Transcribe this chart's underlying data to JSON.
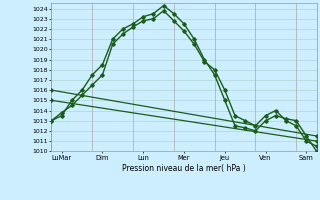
{
  "background_color": "#cceeff",
  "grid_color_h": "#aacccc",
  "grid_color_v": "#aaaaaa",
  "line_color": "#1a5c1a",
  "xlabel": "Pression niveau de la mer( hPa )",
  "ylim": [
    1010,
    1024.5
  ],
  "ytick_min": 1010,
  "ytick_max": 1024,
  "xtick_labels": [
    "LuMar",
    "Dim",
    "Lun",
    "Mer",
    "Jeu",
    "Ven",
    "Sam"
  ],
  "xtick_positions": [
    0.5,
    2.5,
    4.5,
    6.5,
    8.5,
    10.5,
    12.5
  ],
  "vline_positions": [
    0,
    2,
    4,
    6,
    8,
    10,
    12,
    13
  ],
  "series": [
    {
      "x": [
        0,
        0.5,
        1,
        1.5,
        2,
        2.5,
        3,
        3.5,
        4,
        4.5,
        5,
        5.5,
        6,
        6.5,
        7,
        7.5,
        8,
        8.5,
        9,
        9.5,
        10,
        10.5,
        11,
        11.5,
        12,
        12.5,
        13
      ],
      "y": [
        1013.0,
        1013.5,
        1015.0,
        1016.0,
        1017.5,
        1018.5,
        1021.0,
        1022.0,
        1022.5,
        1023.2,
        1023.5,
        1024.3,
        1023.5,
        1022.5,
        1021.0,
        1019.0,
        1017.5,
        1015.0,
        1012.5,
        1012.3,
        1012.0,
        1013.0,
        1013.5,
        1013.2,
        1013.0,
        1011.5,
        1010.0
      ],
      "marker": true,
      "lw": 1.0
    },
    {
      "x": [
        0,
        0.5,
        1,
        1.5,
        2,
        2.5,
        3,
        3.5,
        4,
        4.5,
        5,
        5.5,
        6,
        6.5,
        7,
        7.5,
        8,
        8.5,
        9,
        9.5,
        10,
        10.5,
        11,
        11.5,
        12,
        12.5,
        13
      ],
      "y": [
        1013.0,
        1013.8,
        1014.5,
        1015.5,
        1016.5,
        1017.5,
        1020.5,
        1021.5,
        1022.2,
        1022.8,
        1023.0,
        1023.8,
        1022.8,
        1021.8,
        1020.5,
        1018.8,
        1018.0,
        1016.0,
        1013.5,
        1013.0,
        1012.5,
        1013.5,
        1014.0,
        1013.0,
        1012.5,
        1011.0,
        1010.5
      ],
      "marker": true,
      "lw": 1.0
    },
    {
      "x": [
        0,
        13
      ],
      "y": [
        1016.0,
        1011.5
      ],
      "marker": true,
      "lw": 0.9
    },
    {
      "x": [
        0,
        13
      ],
      "y": [
        1015.0,
        1011.0
      ],
      "marker": true,
      "lw": 0.9
    }
  ]
}
